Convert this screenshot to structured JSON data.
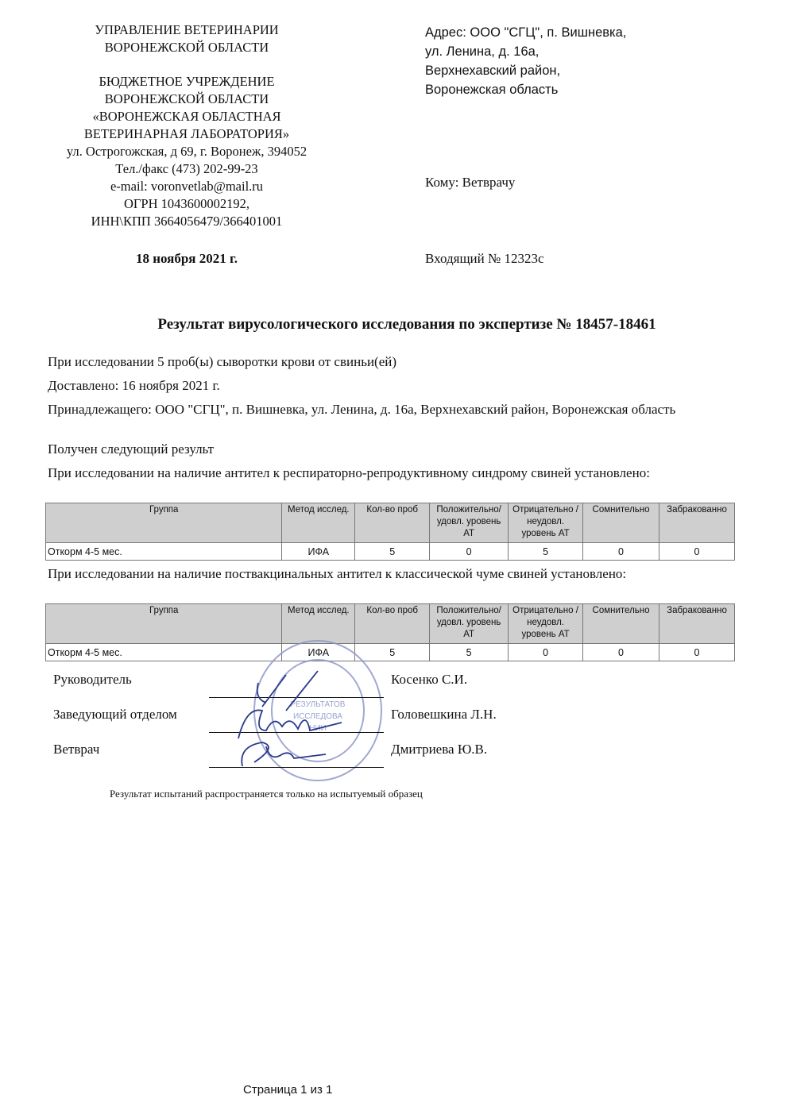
{
  "header_left": {
    "org_lines": [
      "УПРАВЛЕНИЕ ВЕТЕРИНАРИИ",
      "ВОРОНЕЖСКОЙ ОБЛАСТИ"
    ],
    "inst_lines": [
      "БЮДЖЕТНОЕ УЧРЕЖДЕНИЕ",
      "ВОРОНЕЖСКОЙ ОБЛАСТИ",
      "«ВОРОНЕЖСКАЯ ОБЛАСТНАЯ",
      "ВЕТЕРИНАРНАЯ ЛАБОРАТОРИЯ»",
      "ул. Острогожская, д 69, г. Воронеж, 394052",
      "Тел./факс  (473) 202-99-23",
      "e-mail: voronvetlab@mail.ru",
      "ОГРН 1043600002192,",
      "ИНН\\КПП 3664056479/366401001"
    ],
    "date": "18 ноября 2021 г."
  },
  "header_right": {
    "address_lines": [
      "Адрес: ООО \"СГЦ\", п. Вишневка,",
      "ул. Ленина, д. 16а,",
      "Верхнехавский район,",
      "Воронежская область"
    ],
    "to": "Кому: Ветврачу",
    "incoming": "Входящий № 12323с"
  },
  "title": "Результат вирусологического исследования по экспертизе № 18457-18461",
  "paragraphs": {
    "samples": "При исследовании 5 проб(ы) сыворотки крови от свиньи(ей)",
    "delivered": "Доставлено:  16 ноября 2021 г.",
    "owner": "Принадлежащего: ООО \"СГЦ\", п. Вишневка, ул. Ленина, д. 16а, Верхнехавский район, Воронежская область",
    "result": "Получен следующий результ"
  },
  "tables": [
    {
      "caption": "При исследовании на наличие антител к респираторно-репродуктивному синдрому свиней установлено:",
      "headers": [
        "Группа",
        "Метод исслед.",
        "Кол-во проб",
        "Положительно/ удовл. уровень АТ",
        "Отрицательно / неудовл. уровень АТ",
        "Сомнительно",
        "Забракованно"
      ],
      "rows": [
        [
          "Откорм 4-5 мес.",
          "ИФА",
          "5",
          "0",
          "5",
          "0",
          "0"
        ]
      ]
    },
    {
      "caption": "При исследовании на наличие поствакцинальных антител к классической чуме свиней установлено:",
      "headers": [
        "Группа",
        "Метод исслед.",
        "Кол-во проб",
        "Положительно/ удовл. уровень АТ",
        "Отрицательно / неудовл. уровень АТ",
        "Сомнительно",
        "Забракованно"
      ],
      "rows": [
        [
          "Откорм 4-5 мес.",
          "ИФА",
          "5",
          "5",
          "0",
          "0",
          "0"
        ]
      ]
    }
  ],
  "signatures": [
    {
      "role": "Руководитель",
      "name": "Косенко С.И."
    },
    {
      "role": "Заведующий отделом",
      "name": "Головешкина Л.Н."
    },
    {
      "role": "Ветврач",
      "name": "Дмитриева Ю.В."
    }
  ],
  "stamp_text": [
    "ДЛЯ РЕЗУЛЬТАТОВ ИССЛЕДОВАНИЙ",
    "ИНН 3664056479"
  ],
  "stamp_color": "#8a93c8",
  "disclaimer": "Результат испытаний распространяется только на испытуемый образец",
  "footer": {
    "page": "Страница 1 из 1"
  }
}
